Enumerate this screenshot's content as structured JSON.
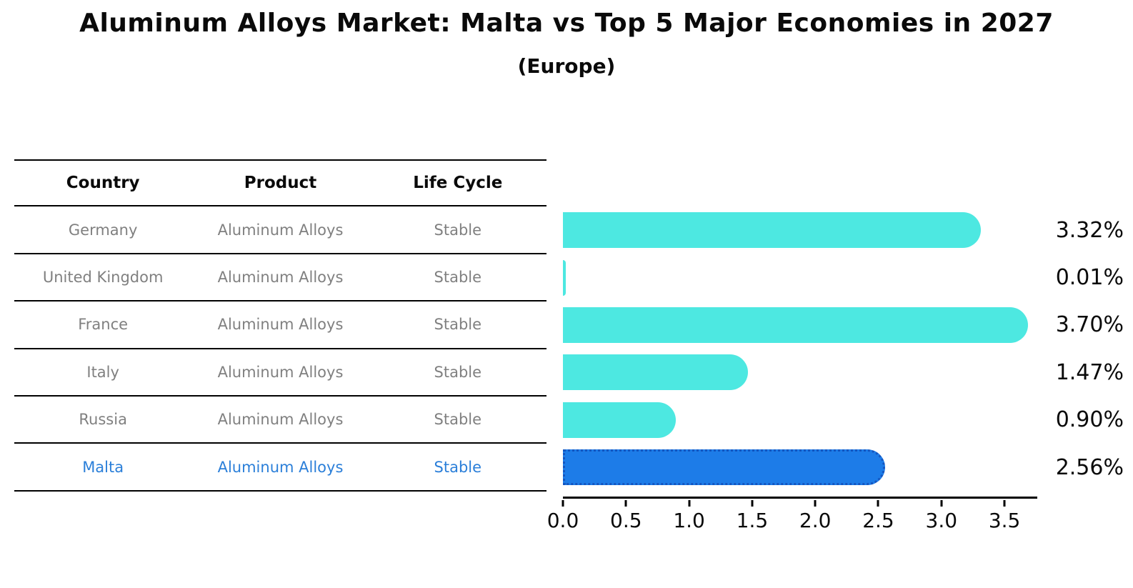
{
  "header": {
    "title": "Aluminum Alloys Market: Malta vs Top 5 Major Economies in 2027",
    "subtitle": "(Europe)"
  },
  "table": {
    "headers": {
      "country": "Country",
      "product": "Product",
      "life_cycle": "Life Cycle"
    },
    "rows": [
      {
        "country": "Germany",
        "product": "Aluminum Alloys",
        "life_cycle": "Stable",
        "highlighted": false
      },
      {
        "country": "United Kingdom",
        "product": "Aluminum Alloys",
        "life_cycle": "Stable",
        "highlighted": false
      },
      {
        "country": "France",
        "product": "Aluminum Alloys",
        "life_cycle": "Stable",
        "highlighted": false
      },
      {
        "country": "Italy",
        "product": "Aluminum Alloys",
        "life_cycle": "Stable",
        "highlighted": false
      },
      {
        "country": "Russia",
        "product": "Aluminum Alloys",
        "life_cycle": "Stable",
        "highlighted": false
      },
      {
        "country": "Malta",
        "product": "Aluminum Alloys",
        "life_cycle": "Stable",
        "highlighted": true
      }
    ]
  },
  "chart_data": {
    "type": "bar",
    "orientation": "horizontal",
    "title": "Aluminum Alloys Market: Malta vs Top 5 Major Economies in 2027 (Europe)",
    "categories": [
      "Germany",
      "United Kingdom",
      "France",
      "Italy",
      "Russia",
      "Malta"
    ],
    "values": [
      3.32,
      0.01,
      3.7,
      1.47,
      0.9,
      2.56
    ],
    "value_labels": [
      "3.32%",
      "0.01%",
      "3.70%",
      "1.47%",
      "0.90%",
      "2.56%"
    ],
    "unit": "%",
    "xlim": [
      0,
      3.76
    ],
    "x_tick_values": [
      0.0,
      0.5,
      1.0,
      1.5,
      2.0,
      2.5,
      3.0,
      3.5
    ],
    "x_tick_labels": [
      "0.0",
      "0.5",
      "1.0",
      "1.5",
      "2.0",
      "2.5",
      "3.0",
      "3.5"
    ],
    "grid": false,
    "legend": false,
    "bar_color": "#4de8e1",
    "highlight": {
      "index": 5,
      "category": "Malta",
      "fill": "#1d7ce8",
      "border": "#1456c0",
      "border_style": "dotted"
    }
  },
  "colors": {
    "background": "#ffffff",
    "text": "#0a0a0a",
    "row_text": "#808080",
    "highlight_text": "#2b7fd9",
    "table_line": "#000000"
  }
}
